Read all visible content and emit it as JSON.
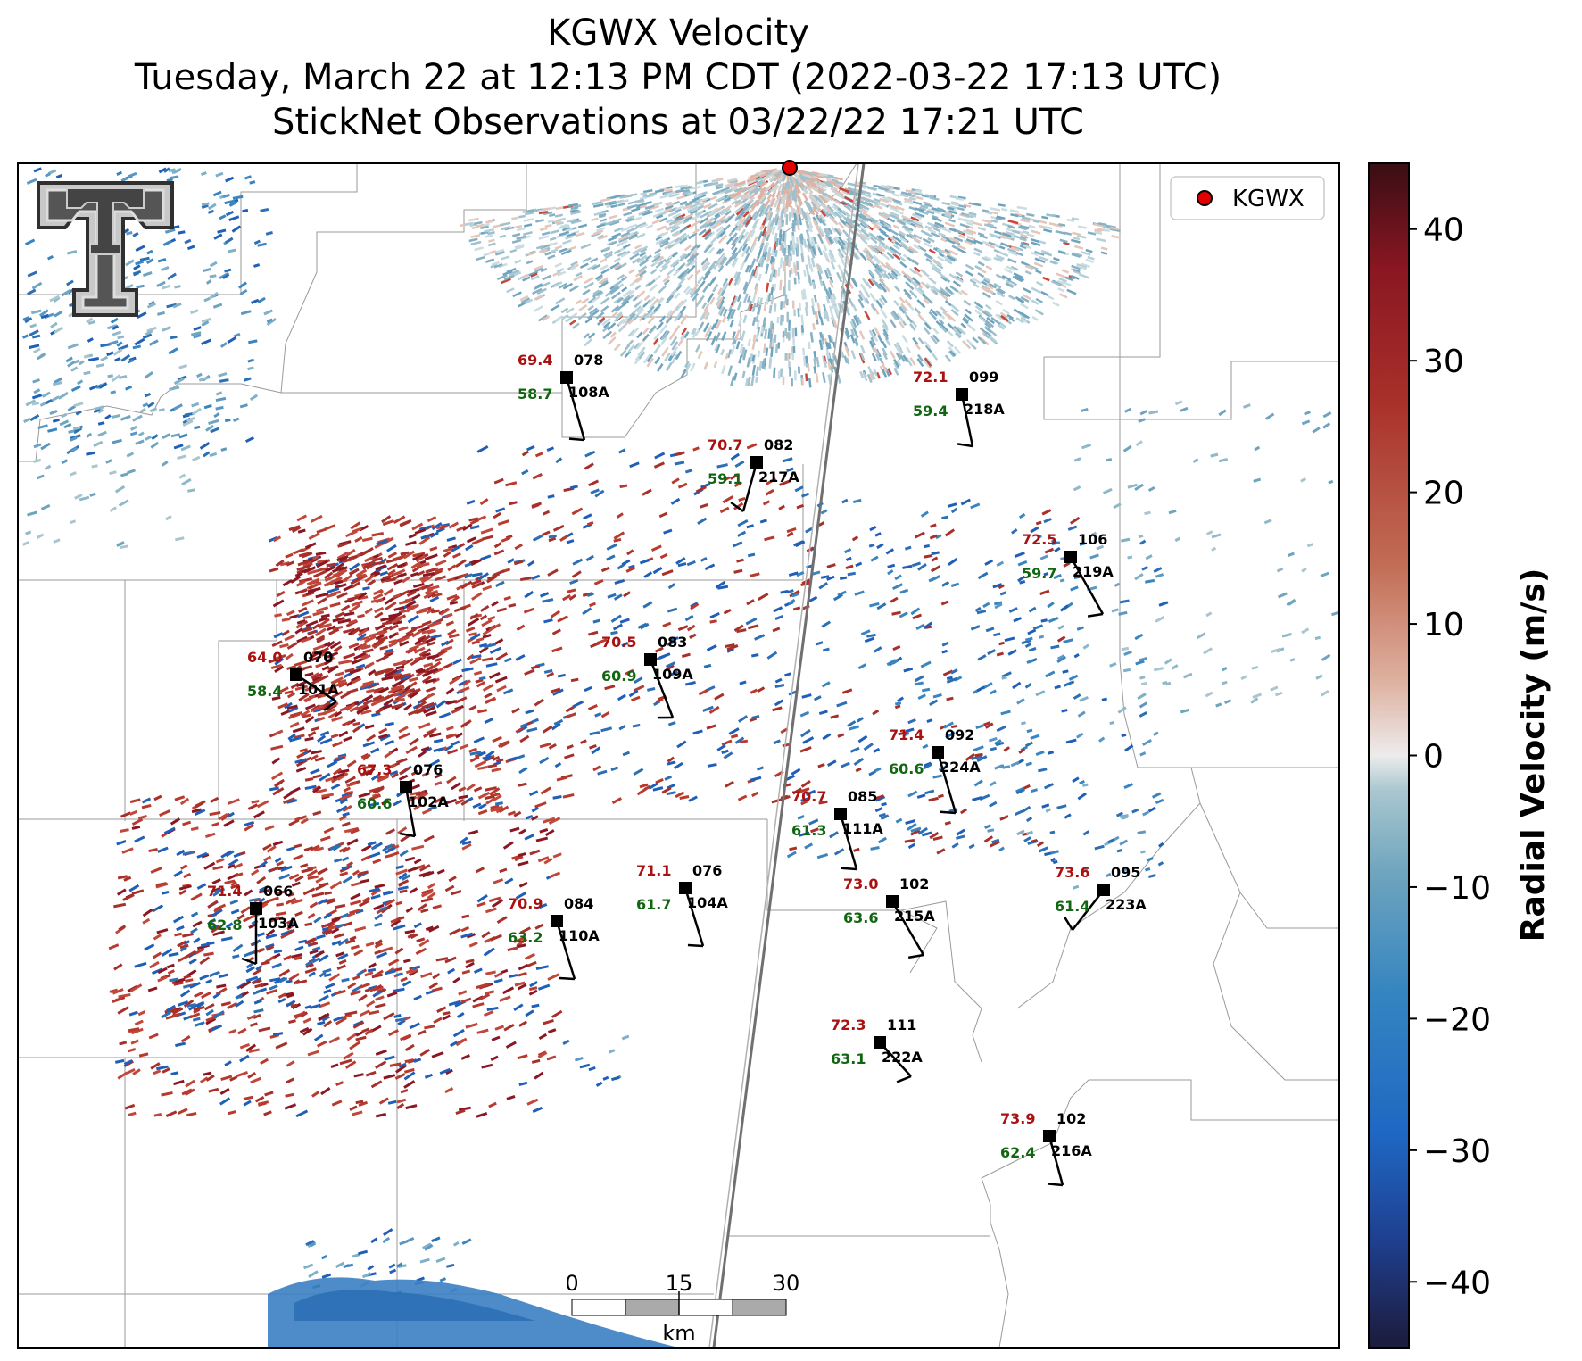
{
  "title": {
    "line1": "KGWX Velocity",
    "line2": "Tuesday, March 22 at 12:13 PM CDT (2022-03-22 17:13 UTC)",
    "line3": "StickNet Observations at 03/22/22 17:21 UTC"
  },
  "legend": {
    "label": "KGWX",
    "marker_color": "#e00000"
  },
  "colorbar": {
    "label": "Radial Velocity (m/s)",
    "min": -45,
    "max": 45,
    "ticks": [
      "40",
      "30",
      "20",
      "10",
      "0",
      "−10",
      "−20",
      "−30",
      "−40"
    ],
    "tick_values": [
      40,
      30,
      20,
      10,
      0,
      -10,
      -20,
      -30,
      -40
    ],
    "colormap": [
      "#1c1b3a",
      "#1f3f8f",
      "#1f67c3",
      "#3585c0",
      "#6ea4be",
      "#a9c6cf",
      "#ececec",
      "#dfb3a2",
      "#c26d55",
      "#a8302a",
      "#8a1722",
      "#3a0d14"
    ]
  },
  "scale_bar": {
    "ticks": [
      "0",
      "15",
      "30"
    ],
    "unit": "km"
  },
  "colors": {
    "temperature": "#aa1111",
    "dewpoint": "#116611",
    "station": "#000000"
  },
  "stations": [
    {
      "id": "108A",
      "temp": "69.4",
      "dew": "58.7",
      "dir": "078"
    },
    {
      "id": "218A",
      "temp": "72.1",
      "dew": "59.4",
      "dir": "099"
    },
    {
      "id": "217A",
      "temp": "70.7",
      "dew": "59.1",
      "dir": "082"
    },
    {
      "id": "219A",
      "temp": "72.5",
      "dew": "59.7",
      "dir": "106"
    },
    {
      "id": "101A",
      "temp": "64.0",
      "dew": "58.4",
      "dir": "070"
    },
    {
      "id": "109A",
      "temp": "70.5",
      "dew": "60.9",
      "dir": "083"
    },
    {
      "id": "224A",
      "temp": "71.4",
      "dew": "60.6",
      "dir": "092"
    },
    {
      "id": "102A",
      "temp": "67.3",
      "dew": "60.6",
      "dir": "076"
    },
    {
      "id": "111A",
      "temp": "70.7",
      "dew": "61.3",
      "dir": "085"
    },
    {
      "id": "103A",
      "temp": "71.4",
      "dew": "62.8",
      "dir": "066"
    },
    {
      "id": "104A",
      "temp": "71.1",
      "dew": "61.7",
      "dir": "076"
    },
    {
      "id": "110A",
      "temp": "70.9",
      "dew": "63.2",
      "dir": "084"
    },
    {
      "id": "215A",
      "temp": "73.0",
      "dew": "63.6",
      "dir": "102"
    },
    {
      "id": "223A",
      "temp": "73.6",
      "dew": "61.4",
      "dir": "095"
    },
    {
      "id": "222A",
      "temp": "72.3",
      "dew": "63.1",
      "dir": "111"
    },
    {
      "id": "216A",
      "temp": "73.9",
      "dew": "62.4",
      "dir": "102"
    }
  ]
}
